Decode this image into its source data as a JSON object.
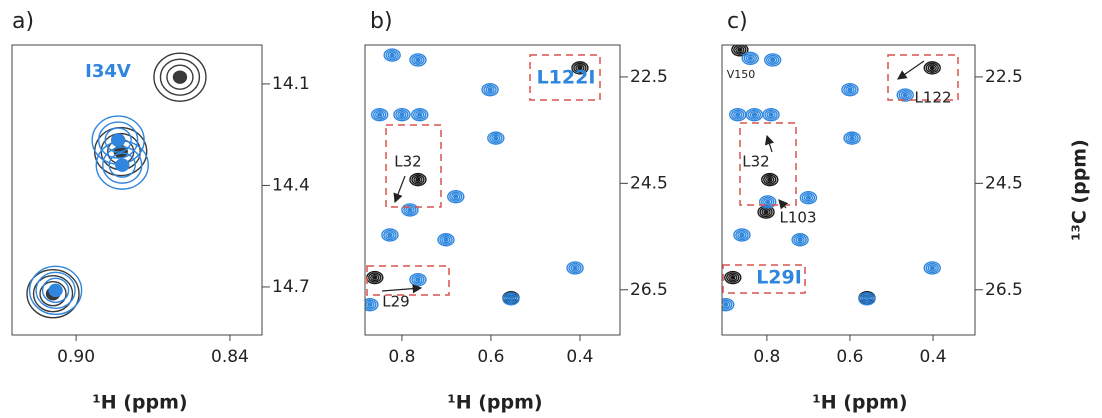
{
  "chart_data": [
    {
      "type": "contour",
      "panel_label": "a)",
      "x_label": "¹H (ppm)",
      "xlim": [
        0.925,
        0.8275
      ],
      "xticks": [
        {
          "value": 0.9,
          "label": "0.90"
        },
        0.84
      ],
      "ylim": [
        13.985,
        14.842
      ],
      "yticks": [
        14.1,
        14.4,
        14.7
      ],
      "annotations": [
        "I34V"
      ],
      "series": [
        {
          "color": "#3a3a3a",
          "x": [
            0.8595,
            0.8826,
            0.909
          ],
          "y": [
            14.08,
            14.3,
            14.72
          ]
        },
        {
          "color": "#2e86de",
          "x": [
            0.8836,
            0.882,
            0.908
          ],
          "y": [
            14.266,
            14.34,
            14.71
          ]
        }
      ]
    },
    {
      "type": "contour",
      "panel_label": "b)",
      "x_label": "¹H (ppm)",
      "y_label": "¹³C (ppm)",
      "xlim": [
        0.883,
        0.31
      ],
      "xticks": [
        0.8,
        0.6,
        0.4
      ],
      "ylim": [
        21.9,
        27.35
      ],
      "yticks": [
        22.5,
        24.5,
        26.5
      ],
      "annotations": [
        "L122I",
        "L32",
        "L29"
      ],
      "series": [
        {
          "color": "#1a1a1a",
          "x": [
            0.4,
            0.764,
            0.861,
            0.555
          ],
          "y": [
            22.33,
            24.43,
            26.27,
            26.65
          ]
        },
        {
          "color": "#2e86de",
          "x": [
            0.822,
            0.764,
            0.602,
            0.589,
            0.782,
            0.679,
            0.827,
            0.701,
            0.411,
            0.764,
            0.555,
            0.872,
            0.85,
            0.8,
            0.76
          ],
          "y": [
            22.09,
            22.18,
            22.74,
            23.65,
            25.0,
            24.75,
            25.47,
            25.56,
            26.09,
            26.31,
            26.67,
            26.78,
            23.21,
            23.21,
            23.21
          ]
        }
      ]
    },
    {
      "type": "contour",
      "panel_label": "c)",
      "x_label": "¹H (ppm)",
      "xlim": [
        0.908,
        0.299
      ],
      "xticks": [
        0.8,
        0.6,
        0.4
      ],
      "ylim": [
        21.9,
        27.35
      ],
      "yticks": [
        22.5,
        24.5,
        26.5
      ],
      "annotations": [
        "V150",
        "L122",
        "L32",
        "L103",
        "L29I"
      ],
      "series": [
        {
          "color": "#1a1a1a",
          "x": [
            0.402,
            0.865,
            0.793,
            0.802,
            0.882,
            0.559
          ],
          "y": [
            22.33,
            21.99,
            24.43,
            25.04,
            26.27,
            26.65
          ]
        },
        {
          "color": "#2e86de",
          "x": [
            0.467,
            0.84,
            0.786,
            0.6,
            0.595,
            0.798,
            0.7,
            0.86,
            0.72,
            0.402,
            0.559,
            0.899,
            0.87,
            0.83,
            0.79
          ],
          "y": [
            22.84,
            22.15,
            22.18,
            22.74,
            23.65,
            24.85,
            24.77,
            25.47,
            25.56,
            26.09,
            26.67,
            26.78,
            23.21,
            23.21,
            23.21
          ]
        }
      ]
    }
  ]
}
